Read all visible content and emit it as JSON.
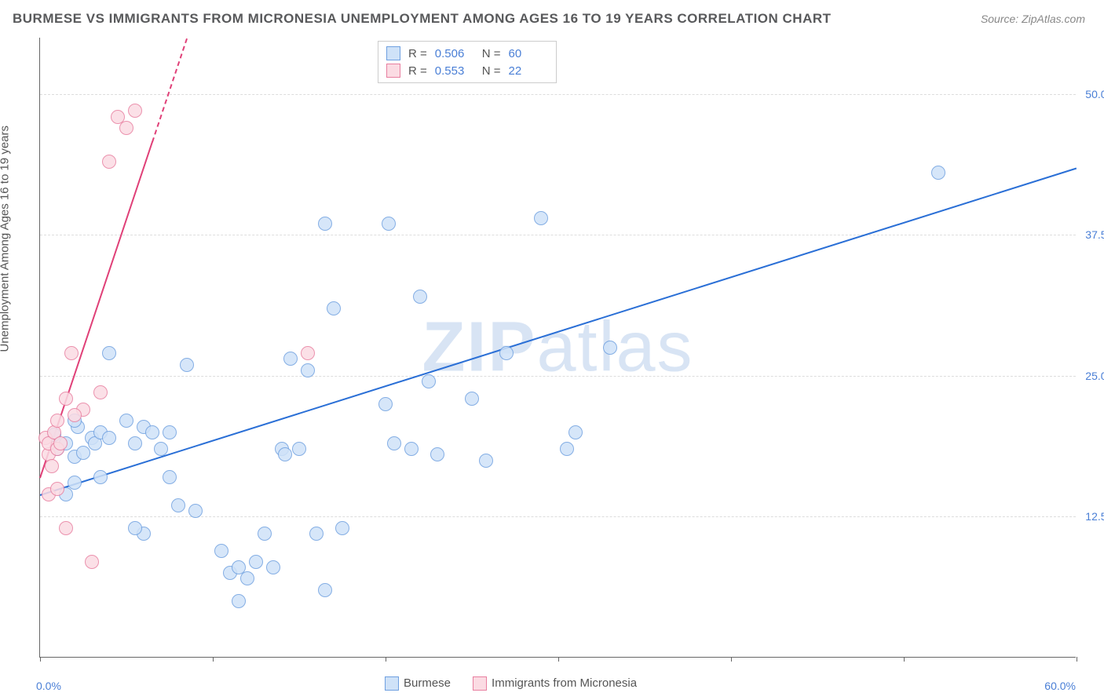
{
  "title": "BURMESE VS IMMIGRANTS FROM MICRONESIA UNEMPLOYMENT AMONG AGES 16 TO 19 YEARS CORRELATION CHART",
  "source": "Source: ZipAtlas.com",
  "y_axis_label": "Unemployment Among Ages 16 to 19 years",
  "watermark_part1": "ZIP",
  "watermark_part2": "atlas",
  "chart": {
    "type": "scatter",
    "xlim": [
      0,
      60
    ],
    "ylim": [
      0,
      55
    ],
    "x_min_label": "0.0%",
    "x_max_label": "60.0%",
    "y_ticks": [
      12.5,
      25.0,
      37.5,
      50.0
    ],
    "y_tick_labels": [
      "12.5%",
      "25.0%",
      "37.5%",
      "50.0%"
    ],
    "x_tick_positions": [
      0,
      10,
      20,
      30,
      40,
      50,
      60
    ],
    "background_color": "#ffffff",
    "grid_color": "#dddddd",
    "axis_color": "#666666",
    "marker_radius": 9,
    "marker_stroke_width": 1.5,
    "series": [
      {
        "name": "Burmese",
        "fill_color": "#cfe2f8",
        "stroke_color": "#6fa0e0",
        "R": "0.506",
        "N": "60",
        "trend": {
          "x1": 0,
          "y1": 14.5,
          "x2": 60,
          "y2": 43.5,
          "color": "#2a6fd6",
          "width": 2,
          "dashed": false
        },
        "points": [
          [
            1.0,
            18.5
          ],
          [
            1.5,
            19.0
          ],
          [
            2.0,
            17.8
          ],
          [
            2.2,
            20.5
          ],
          [
            2.5,
            18.2
          ],
          [
            3.0,
            19.5
          ],
          [
            3.2,
            19.0
          ],
          [
            3.5,
            20.0
          ],
          [
            5.0,
            21.0
          ],
          [
            5.5,
            19.0
          ],
          [
            6.0,
            20.5
          ],
          [
            6.5,
            20.0
          ],
          [
            7.0,
            18.5
          ],
          [
            7.5,
            20.0
          ],
          [
            6.0,
            11.0
          ],
          [
            7.5,
            16.0
          ],
          [
            8.0,
            13.5
          ],
          [
            9.0,
            13.0
          ],
          [
            10.5,
            9.5
          ],
          [
            11.0,
            7.5
          ],
          [
            11.5,
            8.0
          ],
          [
            12.0,
            7.0
          ],
          [
            12.5,
            8.5
          ],
          [
            13.0,
            11.0
          ],
          [
            13.5,
            8.0
          ],
          [
            14.0,
            18.5
          ],
          [
            14.2,
            18.0
          ],
          [
            14.5,
            26.5
          ],
          [
            15.0,
            18.5
          ],
          [
            15.5,
            25.5
          ],
          [
            16.0,
            11.0
          ],
          [
            16.5,
            38.5
          ],
          [
            17.0,
            31.0
          ],
          [
            17.5,
            11.5
          ],
          [
            20.0,
            22.5
          ],
          [
            20.2,
            38.5
          ],
          [
            20.5,
            19.0
          ],
          [
            21.5,
            18.5
          ],
          [
            22.0,
            32.0
          ],
          [
            22.5,
            24.5
          ],
          [
            23.0,
            18.0
          ],
          [
            25.0,
            23.0
          ],
          [
            25.8,
            17.5
          ],
          [
            27.0,
            27.0
          ],
          [
            29.0,
            39.0
          ],
          [
            33.0,
            27.5
          ],
          [
            30.5,
            18.5
          ],
          [
            31.0,
            20.0
          ],
          [
            16.5,
            6.0
          ],
          [
            11.5,
            5.0
          ],
          [
            52.0,
            43.0
          ],
          [
            4.0,
            27.0
          ],
          [
            8.5,
            26.0
          ],
          [
            5.5,
            11.5
          ],
          [
            2.0,
            15.5
          ],
          [
            1.5,
            14.5
          ],
          [
            2.0,
            21.0
          ],
          [
            3.5,
            16.0
          ],
          [
            4.0,
            19.5
          ],
          [
            0.8,
            19.8
          ]
        ]
      },
      {
        "name": "Immigrants from Micronesia",
        "fill_color": "#fbdbe3",
        "stroke_color": "#e87fa0",
        "R": "0.553",
        "N": "22",
        "trend": {
          "x1": 0,
          "y1": 16.0,
          "x2": 8.5,
          "y2": 55.0,
          "color": "#e04078",
          "width": 2,
          "dashed_from_x": 6.5
        },
        "points": [
          [
            0.3,
            19.5
          ],
          [
            0.5,
            18.0
          ],
          [
            0.5,
            19.0
          ],
          [
            0.8,
            20.0
          ],
          [
            1.0,
            18.5
          ],
          [
            1.2,
            19.0
          ],
          [
            1.0,
            21.0
          ],
          [
            1.5,
            23.0
          ],
          [
            1.8,
            27.0
          ],
          [
            2.5,
            22.0
          ],
          [
            3.5,
            23.5
          ],
          [
            4.0,
            44.0
          ],
          [
            4.5,
            48.0
          ],
          [
            5.0,
            47.0
          ],
          [
            5.5,
            48.5
          ],
          [
            0.5,
            14.5
          ],
          [
            1.5,
            11.5
          ],
          [
            2.0,
            21.5
          ],
          [
            3.0,
            8.5
          ],
          [
            0.7,
            17.0
          ],
          [
            15.5,
            27.0
          ],
          [
            1.0,
            15.0
          ]
        ]
      }
    ]
  },
  "legend_bottom": {
    "series1_label": "Burmese",
    "series2_label": "Immigrants from Micronesia"
  },
  "legend_top": {
    "r_label": "R =",
    "n_label": "N ="
  }
}
